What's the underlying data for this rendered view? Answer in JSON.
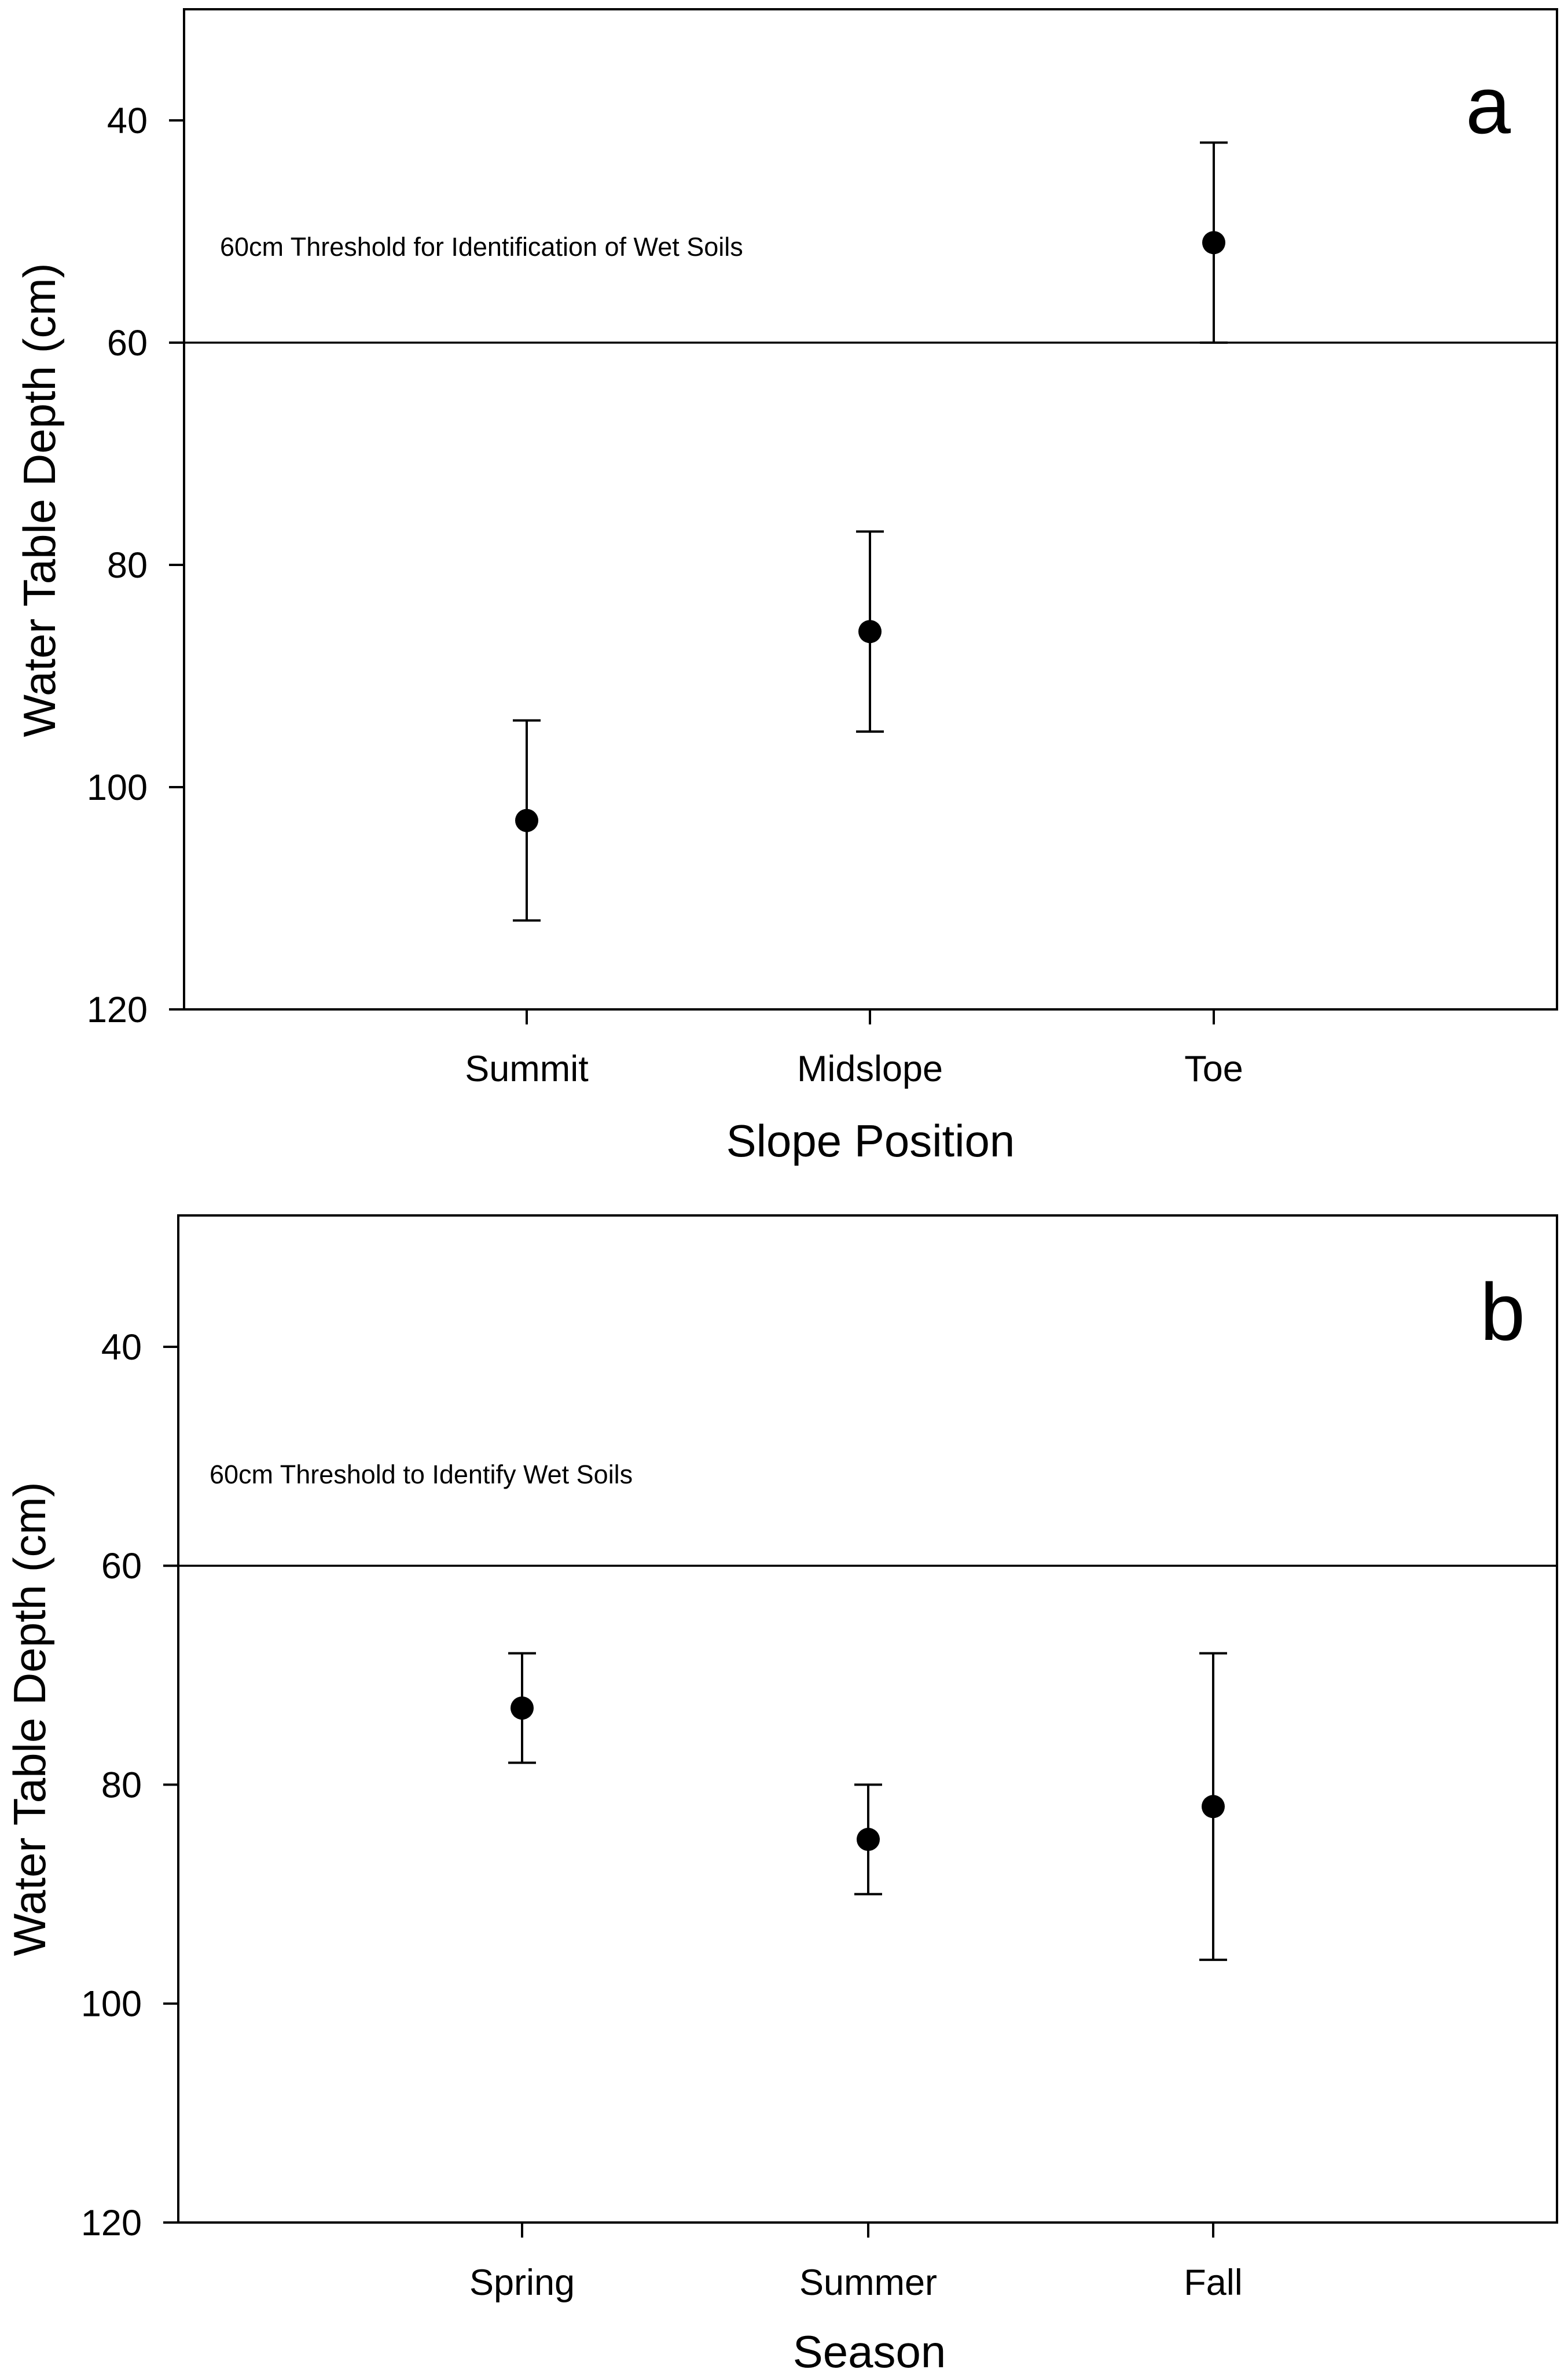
{
  "chart_data": [
    {
      "type": "scatter",
      "panel": "a",
      "categories": [
        "Summit",
        "Midslope",
        "Toe"
      ],
      "values": [
        103,
        86,
        51
      ],
      "error_low": [
        94,
        77,
        42
      ],
      "error_high": [
        112,
        95,
        60
      ],
      "xlabel": "Slope Position",
      "ylabel": "Water Table Depth (cm)",
      "ylim": [
        30,
        120
      ],
      "y_inverted": true,
      "yticks": [
        40,
        60,
        80,
        100,
        120
      ],
      "threshold": {
        "value": 60,
        "label": "60cm Threshold for Identification of Wet Soils"
      },
      "grid": false
    },
    {
      "type": "scatter",
      "panel": "b",
      "categories": [
        "Spring",
        "Summer",
        "Fall"
      ],
      "values": [
        73,
        85,
        82
      ],
      "error_low": [
        68,
        80,
        68
      ],
      "error_high": [
        78,
        90,
        96
      ],
      "xlabel": "Season",
      "ylabel": "Water Table Depth (cm)",
      "ylim": [
        28,
        120
      ],
      "y_inverted": true,
      "yticks": [
        40,
        60,
        80,
        100,
        120
      ],
      "threshold": {
        "value": 60,
        "label": "60cm Threshold to Identify Wet Soils"
      },
      "grid": false
    }
  ]
}
